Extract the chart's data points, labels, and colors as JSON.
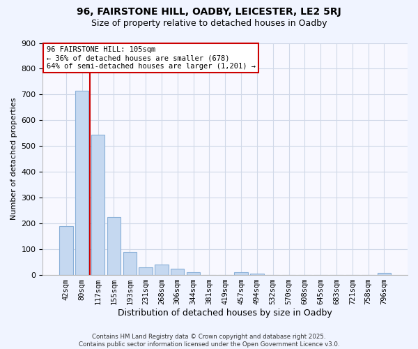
{
  "title": "96, FAIRSTONE HILL, OADBY, LEICESTER, LE2 5RJ",
  "subtitle": "Size of property relative to detached houses in Oadby",
  "xlabel": "Distribution of detached houses by size in Oadby",
  "ylabel": "Number of detached properties",
  "bar_labels": [
    "42sqm",
    "80sqm",
    "117sqm",
    "155sqm",
    "193sqm",
    "231sqm",
    "268sqm",
    "306sqm",
    "344sqm",
    "381sqm",
    "419sqm",
    "457sqm",
    "494sqm",
    "532sqm",
    "570sqm",
    "608sqm",
    "645sqm",
    "683sqm",
    "721sqm",
    "758sqm",
    "796sqm"
  ],
  "bar_values": [
    190,
    715,
    545,
    225,
    90,
    30,
    40,
    25,
    12,
    0,
    0,
    10,
    5,
    0,
    0,
    0,
    0,
    0,
    0,
    0,
    8
  ],
  "bar_color": "#c5d8f0",
  "bar_edge_color": "#8ab0d8",
  "vline_color": "#cc0000",
  "annotation_title": "96 FAIRSTONE HILL: 105sqm",
  "annotation_line1": "← 36% of detached houses are smaller (678)",
  "annotation_line2": "64% of semi-detached houses are larger (1,201) →",
  "annotation_box_color": "#cc0000",
  "ylim": [
    0,
    900
  ],
  "yticks": [
    0,
    100,
    200,
    300,
    400,
    500,
    600,
    700,
    800,
    900
  ],
  "footer1": "Contains HM Land Registry data © Crown copyright and database right 2025.",
  "footer2": "Contains public sector information licensed under the Open Government Licence v3.0.",
  "bg_color": "#f0f4ff",
  "plot_bg_color": "#f8f8ff",
  "grid_color": "#d0d8e8"
}
